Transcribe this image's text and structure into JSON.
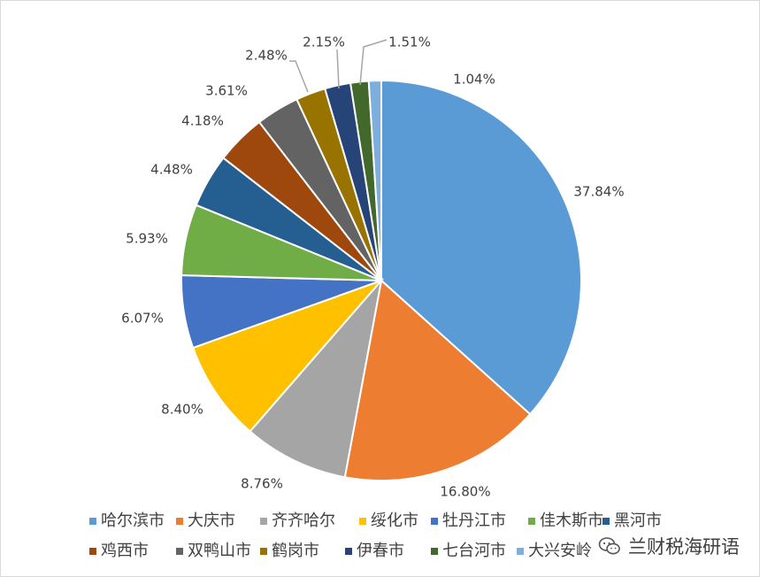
{
  "chart_data": {
    "type": "pie",
    "title": "",
    "categories": [
      "哈尔滨市",
      "大庆市",
      "齐齐哈尔",
      "绥化市",
      "牡丹江市",
      "佳木斯市",
      "黑河市",
      "鸡西市",
      "双鸭山市",
      "鹤岗市",
      "伊春市",
      "七台河市",
      "大兴安岭"
    ],
    "values": [
      37.84,
      16.8,
      8.76,
      8.4,
      6.07,
      5.93,
      4.48,
      4.18,
      3.61,
      2.48,
      2.15,
      1.51,
      1.04
    ],
    "labels": [
      "37.84%",
      "16.80%",
      "8.76%",
      "8.40%",
      "6.07%",
      "5.93%",
      "4.48%",
      "4.18%",
      "3.61%",
      "2.48%",
      "2.15%",
      "1.51%",
      "1.04%"
    ],
    "colors": [
      "#5b9bd5",
      "#ed7d31",
      "#a5a5a5",
      "#ffc000",
      "#4472c4",
      "#70ad47",
      "#255e91",
      "#9e480e",
      "#636363",
      "#997300",
      "#264478",
      "#43682b",
      "#7cafdd"
    ],
    "legend_position": "bottom"
  },
  "watermark": {
    "text": "兰财税海研语",
    "icon": "wechat-icon"
  }
}
